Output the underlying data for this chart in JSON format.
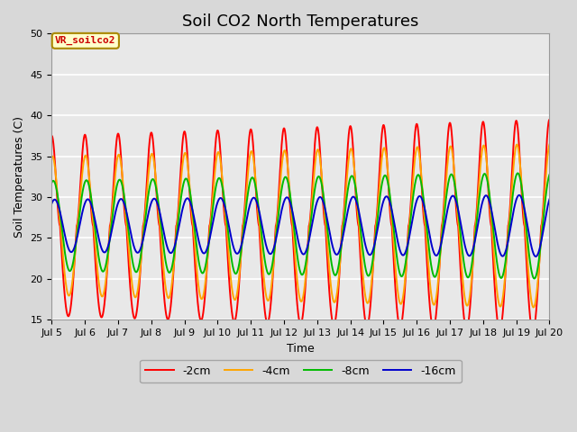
{
  "title": "Soil CO2 North Temperatures",
  "xlabel": "Time",
  "ylabel": "Soil Temperatures (C)",
  "ylim": [
    15,
    50
  ],
  "xlim_days": [
    5,
    20
  ],
  "annotation_text": "VR_soilco2",
  "legend_labels": [
    "-2cm",
    "-4cm",
    "-8cm",
    "-16cm"
  ],
  "legend_colors": [
    "#ff0000",
    "#ffa500",
    "#00bb00",
    "#0000cc"
  ],
  "background_color": "#e8e8e8",
  "grid_color": "#ffffff",
  "title_fontsize": 13,
  "label_fontsize": 9,
  "tick_fontsize": 8,
  "line_width": 1.4,
  "x_tick_labels": [
    "Jul 5",
    "Jul 6",
    "Jul 7",
    "Jul 8",
    "Jul 9",
    "Jul 10",
    "Jul 11",
    "Jul 12",
    "Jul 13",
    "Jul 14",
    "Jul 15",
    "Jul 16",
    "Jul 17",
    "Jul 18",
    "Jul 19",
    "Jul 20"
  ],
  "x_tick_positions": [
    5,
    6,
    7,
    8,
    9,
    10,
    11,
    12,
    13,
    14,
    15,
    16,
    17,
    18,
    19,
    20
  ],
  "base_temp": 26.5,
  "amp_2cm": 11.0,
  "amp_4cm": 8.5,
  "amp_8cm": 5.5,
  "amp_16cm": 3.2,
  "phase_2cm": 0.0,
  "phase_4cm": 0.12,
  "phase_8cm": 0.28,
  "phase_16cm": 0.55,
  "sharp_2cm": 2.5,
  "amp_growth_rate": 0.012
}
